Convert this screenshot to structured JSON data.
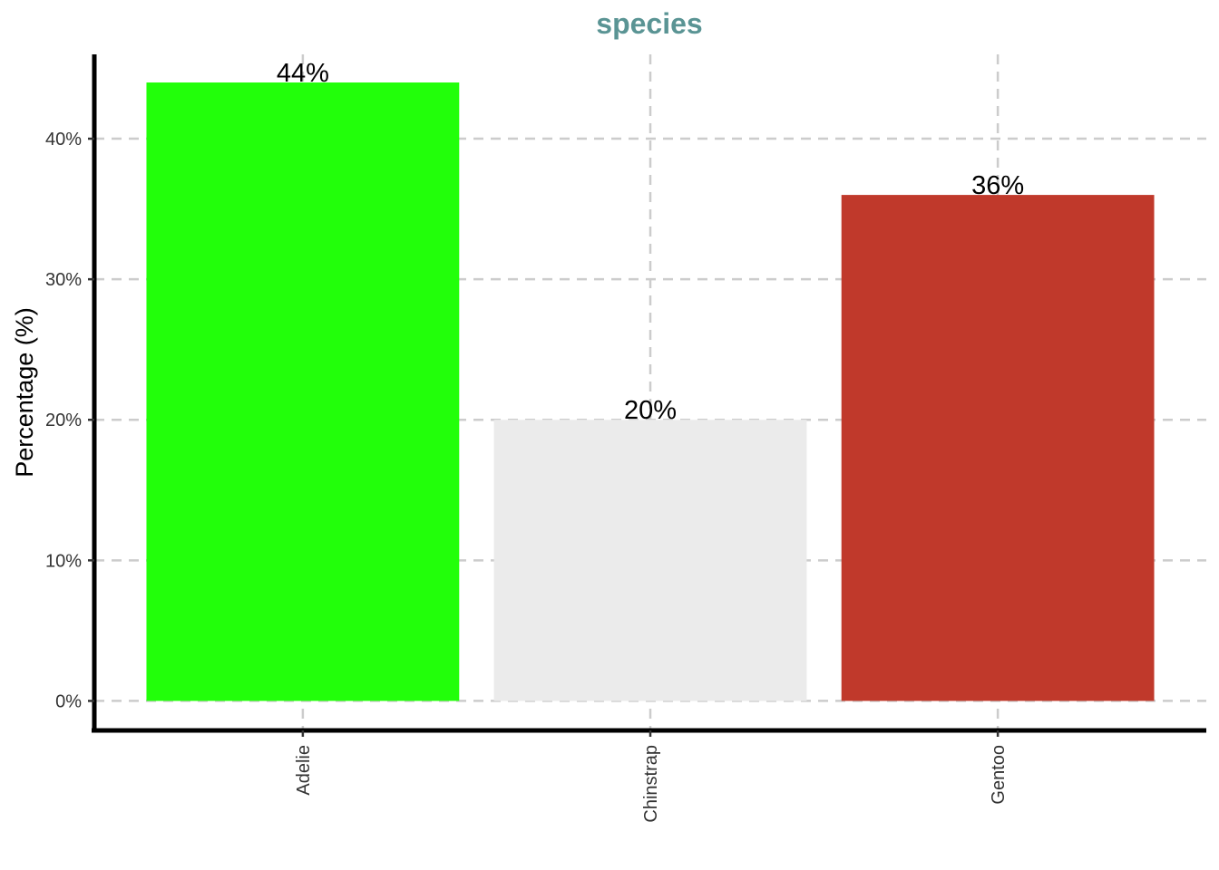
{
  "chart_data": {
    "type": "bar",
    "title": "species",
    "xlabel": "",
    "ylabel": "Percentage (%)",
    "categories": [
      "Adelie",
      "Chinstrap",
      "Gentoo"
    ],
    "values": [
      44,
      20,
      36
    ],
    "value_labels": [
      "44%",
      "20%",
      "36%"
    ],
    "colors": [
      "#22ff0a",
      "#ebebeb",
      "#c0392b"
    ],
    "yticks": [
      0,
      10,
      20,
      30,
      40
    ],
    "ytick_labels": [
      "0%",
      "10%",
      "20%",
      "30%",
      "40%"
    ],
    "ylim": [
      -2.1,
      46
    ],
    "grid": true,
    "legend": "none",
    "title_color": "#5a9494"
  }
}
